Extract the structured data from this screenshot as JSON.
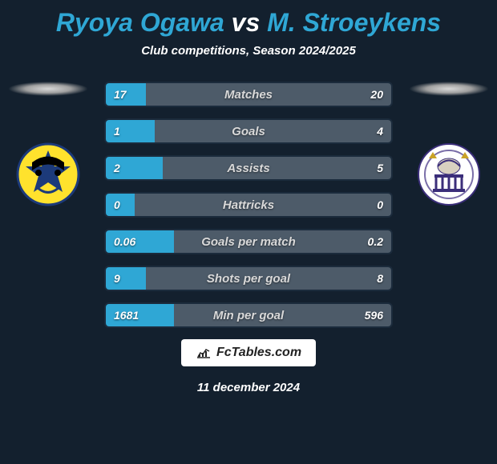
{
  "title": {
    "player1": "Ryoya Ogawa",
    "vs": "vs",
    "player2": "M. Stroeykens",
    "player1_color": "#2fa7d5",
    "player2_color": "#2fa7d5",
    "vs_color": "#ffffff",
    "fontsize": 32
  },
  "subtitle": "Club competitions, Season 2024/2025",
  "background_color": "#13202e",
  "bar_style": {
    "left_color": "#2fa7d5",
    "right_color": "#4d5b69",
    "border_color": "#1b2b3c",
    "label_color": "#d9d9d9",
    "value_color": "#ffffff",
    "height": 32,
    "radius": 6,
    "gap": 14,
    "label_fontsize": 15,
    "value_fontsize": 14
  },
  "stats": [
    {
      "label": "Matches",
      "left_val": "17",
      "right_val": "20",
      "left_pct": 14
    },
    {
      "label": "Goals",
      "left_val": "1",
      "right_val": "4",
      "left_pct": 17
    },
    {
      "label": "Assists",
      "left_val": "2",
      "right_val": "5",
      "left_pct": 20
    },
    {
      "label": "Hattricks",
      "left_val": "0",
      "right_val": "0",
      "left_pct": 10
    },
    {
      "label": "Goals per match",
      "left_val": "0.06",
      "right_val": "0.2",
      "left_pct": 24
    },
    {
      "label": "Shots per goal",
      "left_val": "9",
      "right_val": "8",
      "left_pct": 14
    },
    {
      "label": "Min per goal",
      "left_val": "1681",
      "right_val": "596",
      "left_pct": 24
    }
  ],
  "crests": {
    "left": {
      "bg": "#ffe22d",
      "ring": "#1c3a7a",
      "accent": "#000000"
    },
    "right": {
      "bg": "#ffffff",
      "ring": "#3b2e7a",
      "accent": "#7a6ea8"
    }
  },
  "brand": "FcTables.com",
  "date": "11 december 2024"
}
